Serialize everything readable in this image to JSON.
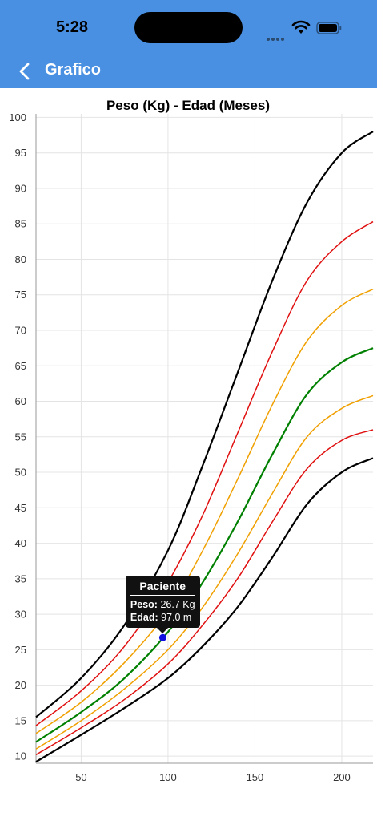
{
  "status_bar": {
    "time": "5:28"
  },
  "nav": {
    "title": "Grafico",
    "back_icon": "chevron-left-icon"
  },
  "colors": {
    "header": "#4a90e2",
    "point": "#1010e0",
    "tooltip_bg": "#111111"
  },
  "tooltip": {
    "title": "Paciente",
    "peso_label": "Peso:",
    "peso_value": "26.7 Kg",
    "edad_label": "Edad:",
    "edad_value": "97.0 m"
  },
  "chart_data": {
    "type": "line",
    "title": "Peso (Kg) - Edad (Meses)",
    "xlim": [
      24,
      218
    ],
    "ylim": [
      9,
      100.5
    ],
    "x_ticks": [
      50,
      100,
      150,
      200
    ],
    "y_ticks": [
      10,
      15,
      20,
      25,
      30,
      35,
      40,
      45,
      50,
      55,
      60,
      65,
      70,
      75,
      80,
      85,
      90,
      95,
      100
    ],
    "grid": true,
    "series": [
      {
        "color": "#000000",
        "width": 2.2,
        "points": [
          [
            24,
            15.5
          ],
          [
            50,
            21
          ],
          [
            75,
            28.5
          ],
          [
            100,
            39
          ],
          [
            120,
            51
          ],
          [
            140,
            64
          ],
          [
            160,
            77
          ],
          [
            180,
            88
          ],
          [
            200,
            95
          ],
          [
            218,
            98
          ]
        ]
      },
      {
        "color": "#e01010",
        "width": 1.5,
        "points": [
          [
            24,
            14.3
          ],
          [
            50,
            19.2
          ],
          [
            75,
            25.5
          ],
          [
            100,
            34.5
          ],
          [
            120,
            44
          ],
          [
            140,
            55.5
          ],
          [
            160,
            67
          ],
          [
            180,
            77
          ],
          [
            200,
            82.5
          ],
          [
            218,
            85.3
          ]
        ]
      },
      {
        "color": "#f0a000",
        "width": 1.5,
        "points": [
          [
            24,
            13.2
          ],
          [
            50,
            17.6
          ],
          [
            75,
            23.2
          ],
          [
            100,
            30.5
          ],
          [
            120,
            39
          ],
          [
            140,
            49
          ],
          [
            160,
            59.5
          ],
          [
            180,
            68.5
          ],
          [
            200,
            73.5
          ],
          [
            218,
            75.8
          ]
        ]
      },
      {
        "color": "#008000",
        "width": 2.2,
        "points": [
          [
            24,
            12
          ],
          [
            50,
            16.2
          ],
          [
            75,
            21
          ],
          [
            100,
            27.5
          ],
          [
            120,
            34.5
          ],
          [
            140,
            43
          ],
          [
            160,
            52.5
          ],
          [
            180,
            61
          ],
          [
            200,
            65.5
          ],
          [
            218,
            67.5
          ]
        ]
      },
      {
        "color": "#f0a000",
        "width": 1.5,
        "points": [
          [
            24,
            11
          ],
          [
            50,
            15
          ],
          [
            75,
            19.5
          ],
          [
            100,
            25
          ],
          [
            120,
            31
          ],
          [
            140,
            38.5
          ],
          [
            160,
            47
          ],
          [
            180,
            55
          ],
          [
            200,
            59
          ],
          [
            218,
            60.8
          ]
        ]
      },
      {
        "color": "#e01010",
        "width": 1.5,
        "points": [
          [
            24,
            10.2
          ],
          [
            50,
            14
          ],
          [
            75,
            18
          ],
          [
            100,
            23
          ],
          [
            120,
            28.5
          ],
          [
            140,
            35
          ],
          [
            160,
            43
          ],
          [
            180,
            50.5
          ],
          [
            200,
            54.5
          ],
          [
            218,
            56
          ]
        ]
      },
      {
        "color": "#000000",
        "width": 2.2,
        "points": [
          [
            24,
            9.2
          ],
          [
            50,
            13
          ],
          [
            75,
            16.8
          ],
          [
            100,
            21
          ],
          [
            120,
            25.5
          ],
          [
            140,
            31
          ],
          [
            160,
            38
          ],
          [
            180,
            45.5
          ],
          [
            200,
            50
          ],
          [
            218,
            52
          ]
        ]
      }
    ],
    "patient_point": {
      "x": 97.0,
      "y": 26.7
    }
  }
}
